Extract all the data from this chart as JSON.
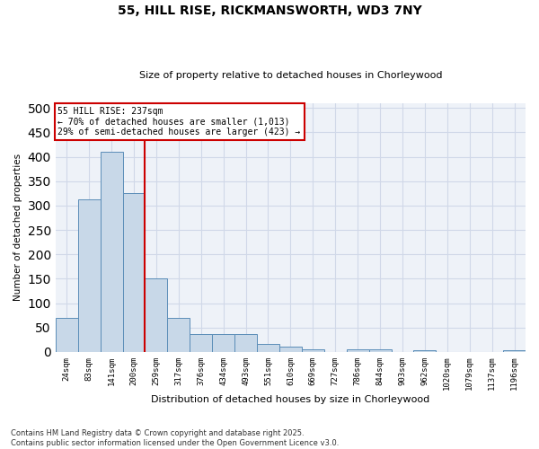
{
  "title1": "55, HILL RISE, RICKMANSWORTH, WD3 7NY",
  "title2": "Size of property relative to detached houses in Chorleywood",
  "xlabel": "Distribution of detached houses by size in Chorleywood",
  "ylabel": "Number of detached properties",
  "categories": [
    "24sqm",
    "83sqm",
    "141sqm",
    "200sqm",
    "259sqm",
    "317sqm",
    "376sqm",
    "434sqm",
    "493sqm",
    "551sqm",
    "610sqm",
    "669sqm",
    "727sqm",
    "786sqm",
    "844sqm",
    "903sqm",
    "962sqm",
    "1020sqm",
    "1079sqm",
    "1137sqm",
    "1196sqm"
  ],
  "values": [
    70,
    312,
    410,
    325,
    150,
    70,
    37,
    37,
    37,
    17,
    11,
    5,
    0,
    6,
    6,
    0,
    3,
    0,
    0,
    0,
    3
  ],
  "bar_color": "#c8d8e8",
  "bar_edge_color": "#5b8db8",
  "vline_x_idx": 3,
  "vline_color": "#cc0000",
  "annotation_text": "55 HILL RISE: 237sqm\n← 70% of detached houses are smaller (1,013)\n29% of semi-detached houses are larger (423) →",
  "annotation_box_color": "#ffffff",
  "annotation_box_edge": "#cc0000",
  "grid_color": "#d0d8e8",
  "background_color": "#eef2f8",
  "footer_text": "Contains HM Land Registry data © Crown copyright and database right 2025.\nContains public sector information licensed under the Open Government Licence v3.0.",
  "ylim": [
    0,
    510
  ],
  "yticks": [
    0,
    50,
    100,
    150,
    200,
    250,
    300,
    350,
    400,
    450,
    500
  ]
}
